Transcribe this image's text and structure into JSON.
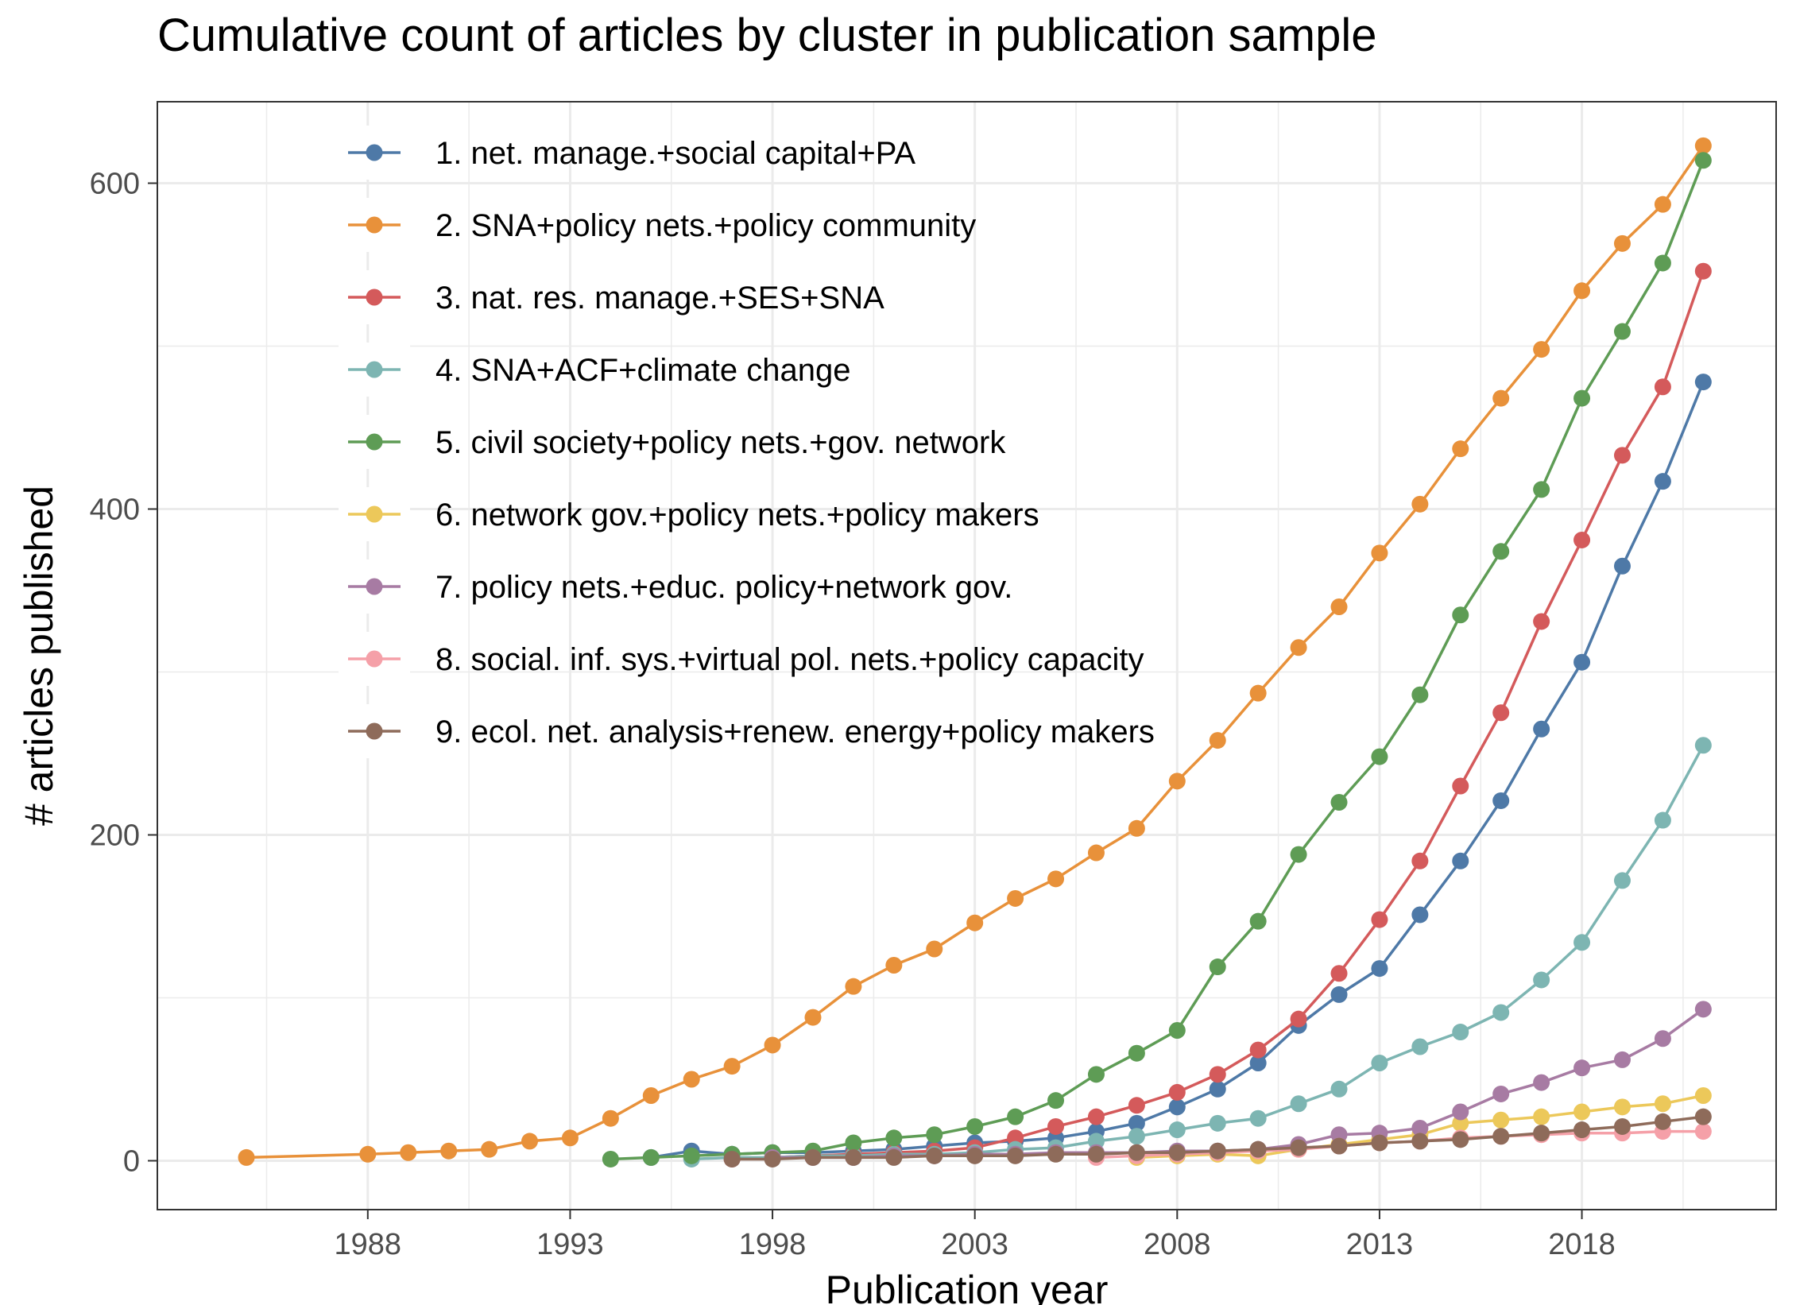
{
  "chart_data": {
    "type": "line",
    "title": "Cumulative count of articles by cluster in publication sample",
    "xlabel": "Publication year",
    "ylabel": "# articles published",
    "xlim": [
      1982.8,
      2022.8
    ],
    "ylim": [
      -30,
      650
    ],
    "xticks": [
      1988,
      1993,
      1998,
      2003,
      2008,
      2013,
      2018
    ],
    "yticks": [
      0,
      200,
      400,
      600
    ],
    "grid": true,
    "legend_position": "top-left",
    "series": [
      {
        "name": "1. net. manage.+social capital+PA",
        "color": "#4E79A7",
        "x": [
          1995,
          1996,
          1997,
          1998,
          1999,
          2000,
          2001,
          2002,
          2003,
          2004,
          2005,
          2006,
          2007,
          2008,
          2009,
          2010,
          2011,
          2012,
          2013,
          2014,
          2015,
          2016,
          2017,
          2018,
          2019,
          2020,
          2021
        ],
        "y": [
          2,
          6,
          4,
          5,
          5,
          6,
          7,
          9,
          11,
          12,
          14,
          18,
          23,
          33,
          44,
          60,
          83,
          102,
          118,
          151,
          184,
          221,
          265,
          306,
          365,
          417,
          478
        ]
      },
      {
        "name": "2. SNA+policy nets.+policy community",
        "color": "#E8913A",
        "x": [
          1985,
          1988,
          1989,
          1990,
          1991,
          1992,
          1993,
          1994,
          1995,
          1996,
          1997,
          1998,
          1999,
          2000,
          2001,
          2002,
          2003,
          2004,
          2005,
          2006,
          2007,
          2008,
          2009,
          2010,
          2011,
          2012,
          2013,
          2014,
          2015,
          2016,
          2017,
          2018,
          2019,
          2020,
          2021
        ],
        "y": [
          2,
          4,
          5,
          6,
          7,
          12,
          14,
          26,
          40,
          50,
          58,
          71,
          88,
          107,
          120,
          130,
          146,
          161,
          173,
          189,
          204,
          233,
          258,
          287,
          315,
          340,
          373,
          403,
          437,
          468,
          498,
          534,
          563,
          587,
          623
        ]
      },
      {
        "name": "3. nat. res. manage.+SES+SNA",
        "color": "#D45A5B",
        "x": [
          1997,
          1998,
          1999,
          2000,
          2001,
          2002,
          2003,
          2004,
          2005,
          2006,
          2007,
          2008,
          2009,
          2010,
          2011,
          2012,
          2013,
          2014,
          2015,
          2016,
          2017,
          2018,
          2019,
          2020,
          2021
        ],
        "y": [
          1,
          2,
          3,
          4,
          5,
          6,
          8,
          14,
          21,
          27,
          34,
          42,
          53,
          68,
          87,
          115,
          148,
          184,
          230,
          275,
          331,
          381,
          433,
          475,
          546
        ]
      },
      {
        "name": "4. SNA+ACF+climate change",
        "color": "#7DB5B2",
        "x": [
          1996,
          1997,
          1998,
          1999,
          2000,
          2001,
          2002,
          2003,
          2004,
          2005,
          2006,
          2007,
          2008,
          2009,
          2010,
          2011,
          2012,
          2013,
          2014,
          2015,
          2016,
          2017,
          2018,
          2019,
          2020,
          2021
        ],
        "y": [
          1,
          2,
          2,
          3,
          3,
          4,
          4,
          5,
          7,
          8,
          12,
          15,
          19,
          23,
          26,
          35,
          44,
          60,
          70,
          79,
          91,
          111,
          134,
          172,
          209,
          255
        ]
      },
      {
        "name": "5. civil society+policy nets.+gov. network",
        "color": "#5E9C55",
        "x": [
          1994,
          1995,
          1996,
          1997,
          1998,
          1999,
          2000,
          2001,
          2002,
          2003,
          2004,
          2005,
          2006,
          2007,
          2008,
          2009,
          2010,
          2011,
          2012,
          2013,
          2014,
          2015,
          2016,
          2017,
          2018,
          2019,
          2020,
          2021
        ],
        "y": [
          1,
          2,
          3,
          4,
          5,
          6,
          11,
          14,
          16,
          21,
          27,
          37,
          53,
          66,
          80,
          119,
          147,
          188,
          220,
          248,
          286,
          335,
          374,
          412,
          468,
          509,
          551,
          614
        ]
      },
      {
        "name": "6. network gov.+policy nets.+policy makers",
        "color": "#ECC85A",
        "x": [
          2007,
          2008,
          2009,
          2010,
          2011,
          2012,
          2013,
          2014,
          2015,
          2016,
          2017,
          2018,
          2019,
          2020,
          2021
        ],
        "y": [
          2,
          3,
          4,
          3,
          7,
          10,
          13,
          16,
          23,
          25,
          27,
          30,
          33,
          35,
          40
        ]
      },
      {
        "name": "7. policy nets.+educ. policy+network gov.",
        "color": "#A77BA3",
        "x": [
          1998,
          1999,
          2000,
          2001,
          2002,
          2003,
          2004,
          2005,
          2006,
          2007,
          2008,
          2009,
          2010,
          2011,
          2012,
          2013,
          2014,
          2015,
          2016,
          2017,
          2018,
          2019,
          2020,
          2021
        ],
        "y": [
          2,
          2,
          2,
          3,
          3,
          4,
          4,
          5,
          5,
          5,
          6,
          6,
          7,
          10,
          16,
          17,
          20,
          30,
          41,
          48,
          57,
          62,
          75,
          93
        ]
      },
      {
        "name": "8. social. inf. sys.+virtual pol. nets.+policy capacity",
        "color": "#F5A0A8",
        "x": [
          2006,
          2007,
          2008,
          2009,
          2010,
          2011,
          2012,
          2013,
          2014,
          2015,
          2016,
          2017,
          2018,
          2019,
          2020,
          2021
        ],
        "y": [
          2,
          3,
          4,
          5,
          6,
          7,
          9,
          11,
          12,
          14,
          15,
          16,
          17,
          17,
          18,
          18
        ]
      },
      {
        "name": "9. ecol. net. analysis+renew. energy+policy makers",
        "color": "#8E6B5A",
        "x": [
          1997,
          1998,
          1999,
          2000,
          2001,
          2002,
          2003,
          2004,
          2005,
          2006,
          2007,
          2008,
          2009,
          2010,
          2011,
          2012,
          2013,
          2014,
          2015,
          2016,
          2017,
          2018,
          2019,
          2020,
          2021
        ],
        "y": [
          1,
          1,
          2,
          2,
          2,
          3,
          3,
          3,
          4,
          4,
          5,
          5,
          6,
          7,
          8,
          9,
          11,
          12,
          13,
          15,
          17,
          19,
          21,
          24,
          27
        ]
      }
    ]
  }
}
